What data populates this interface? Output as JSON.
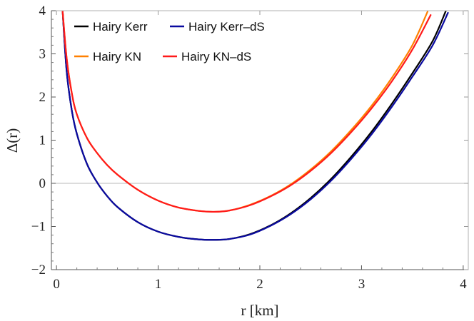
{
  "chart_data": {
    "type": "line",
    "xlabel": "r [km]",
    "ylabel": "Δ(r)",
    "xlim": [
      -0.05,
      4.05
    ],
    "ylim": [
      -2,
      4
    ],
    "x_ticks": [
      0,
      1,
      2,
      3,
      4
    ],
    "y_ticks": [
      -2,
      -1,
      0,
      1,
      2,
      3,
      4
    ],
    "x_tick_labels": [
      "0",
      "1",
      "2",
      "3",
      "4"
    ],
    "y_tick_labels": [
      "−2",
      "−1",
      "0",
      "1",
      "2",
      "3",
      "4"
    ],
    "zero_line": true,
    "grid": false,
    "legend_position": "top-left",
    "series": [
      {
        "name": "Hairy Kerr",
        "color": "#000000",
        "x": [
          0.06,
          0.1,
          0.15,
          0.2,
          0.3,
          0.4,
          0.5,
          0.6,
          0.8,
          1.0,
          1.2,
          1.4,
          1.55,
          1.7,
          1.9,
          2.1,
          2.3,
          2.5,
          2.7,
          2.9,
          3.1,
          3.3,
          3.5,
          3.7,
          3.83
        ],
        "y": [
          4.0,
          2.6,
          1.7,
          1.15,
          0.45,
          0.02,
          -0.3,
          -0.55,
          -0.9,
          -1.12,
          -1.24,
          -1.3,
          -1.31,
          -1.29,
          -1.18,
          -0.98,
          -0.7,
          -0.34,
          0.1,
          0.62,
          1.2,
          1.85,
          2.55,
          3.3,
          4.0
        ]
      },
      {
        "name": "Hairy Kerr–dS",
        "color": "#0a0aa0",
        "x": [
          0.06,
          0.1,
          0.15,
          0.2,
          0.3,
          0.4,
          0.5,
          0.6,
          0.8,
          1.0,
          1.2,
          1.4,
          1.55,
          1.7,
          1.9,
          2.1,
          2.3,
          2.5,
          2.7,
          2.9,
          3.1,
          3.3,
          3.5,
          3.7,
          3.85
        ],
        "y": [
          4.0,
          2.6,
          1.7,
          1.15,
          0.45,
          0.02,
          -0.3,
          -0.55,
          -0.9,
          -1.12,
          -1.24,
          -1.3,
          -1.31,
          -1.29,
          -1.19,
          -0.99,
          -0.72,
          -0.37,
          0.06,
          0.57,
          1.14,
          1.78,
          2.47,
          3.2,
          3.95
        ]
      },
      {
        "name": "Hairy KN",
        "color": "#ff8000",
        "x": [
          0.06,
          0.1,
          0.15,
          0.2,
          0.3,
          0.4,
          0.5,
          0.6,
          0.8,
          1.0,
          1.2,
          1.4,
          1.55,
          1.7,
          1.9,
          2.1,
          2.3,
          2.5,
          2.7,
          2.9,
          3.1,
          3.3,
          3.5,
          3.65
        ],
        "y": [
          4.0,
          2.9,
          2.1,
          1.6,
          1.05,
          0.7,
          0.42,
          0.2,
          -0.15,
          -0.4,
          -0.56,
          -0.64,
          -0.66,
          -0.63,
          -0.5,
          -0.3,
          -0.03,
          0.32,
          0.74,
          1.24,
          1.8,
          2.45,
          3.2,
          3.98
        ]
      },
      {
        "name": "Hairy KN–dS",
        "color": "#ff1a1a",
        "x": [
          0.06,
          0.1,
          0.15,
          0.2,
          0.3,
          0.4,
          0.5,
          0.6,
          0.8,
          1.0,
          1.2,
          1.4,
          1.55,
          1.7,
          1.9,
          2.1,
          2.3,
          2.5,
          2.7,
          2.9,
          3.1,
          3.3,
          3.5,
          3.68
        ],
        "y": [
          4.0,
          2.9,
          2.1,
          1.6,
          1.05,
          0.7,
          0.42,
          0.2,
          -0.15,
          -0.4,
          -0.56,
          -0.64,
          -0.66,
          -0.63,
          -0.51,
          -0.31,
          -0.05,
          0.29,
          0.7,
          1.19,
          1.74,
          2.37,
          3.1,
          3.9
        ]
      }
    ]
  }
}
